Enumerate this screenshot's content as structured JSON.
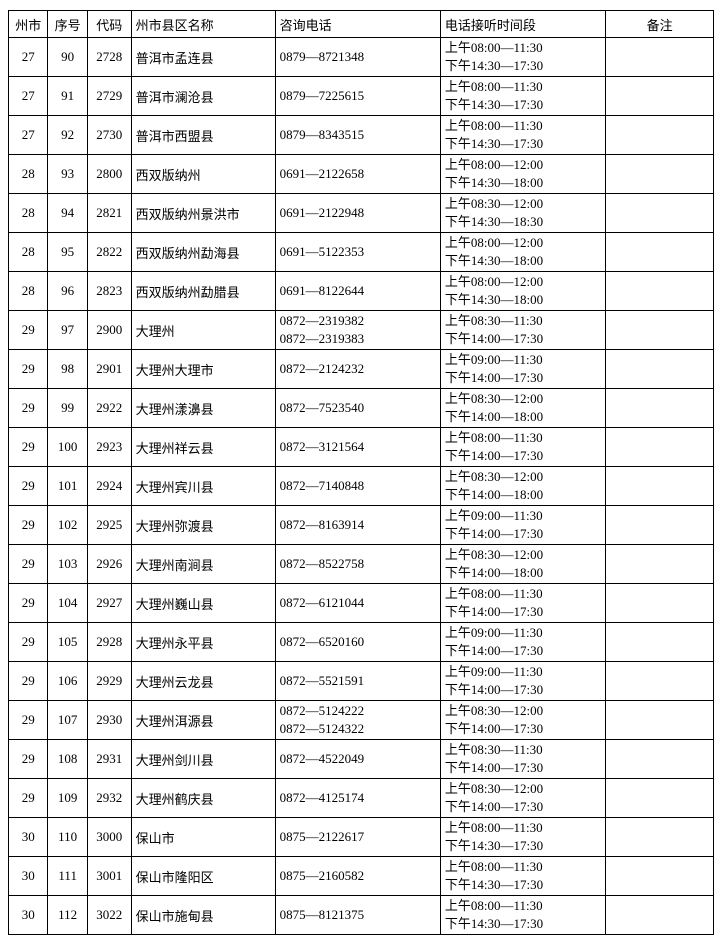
{
  "columns": [
    "州市",
    "序号",
    "代码",
    "州市县区名称",
    "咨询电话",
    "电话接听时间段",
    "备注"
  ],
  "rows": [
    {
      "city": "27",
      "seq": "90",
      "code": "2728",
      "name": "普洱市孟连县",
      "phones": [
        "0879—8721348"
      ],
      "times": [
        "上午08:00—11:30",
        "下午14:30—17:30"
      ],
      "note": ""
    },
    {
      "city": "27",
      "seq": "91",
      "code": "2729",
      "name": "普洱市澜沧县",
      "phones": [
        "0879—7225615"
      ],
      "times": [
        "上午08:00—11:30",
        "下午14:30—17:30"
      ],
      "note": ""
    },
    {
      "city": "27",
      "seq": "92",
      "code": "2730",
      "name": "普洱市西盟县",
      "phones": [
        "0879—8343515"
      ],
      "times": [
        "上午08:00—11:30",
        "下午14:30—17:30"
      ],
      "note": ""
    },
    {
      "city": "28",
      "seq": "93",
      "code": "2800",
      "name": "西双版纳州",
      "phones": [
        "0691—2122658"
      ],
      "times": [
        "上午08:00—12:00",
        "下午14:30—18:00"
      ],
      "note": ""
    },
    {
      "city": "28",
      "seq": "94",
      "code": "2821",
      "name": "西双版纳州景洪市",
      "phones": [
        "0691—2122948"
      ],
      "times": [
        "上午08:30—12:00",
        "下午14:30—18:30"
      ],
      "note": ""
    },
    {
      "city": "28",
      "seq": "95",
      "code": "2822",
      "name": "西双版纳州勐海县",
      "phones": [
        "0691—5122353"
      ],
      "times": [
        "上午08:00—12:00",
        "下午14:30—18:00"
      ],
      "note": ""
    },
    {
      "city": "28",
      "seq": "96",
      "code": "2823",
      "name": "西双版纳州勐腊县",
      "phones": [
        "0691—8122644"
      ],
      "times": [
        "上午08:00—12:00",
        "下午14:30—18:00"
      ],
      "note": ""
    },
    {
      "city": "29",
      "seq": "97",
      "code": "2900",
      "name": "大理州",
      "phones": [
        "0872—2319382",
        "0872—2319383"
      ],
      "times": [
        "上午08:30—11:30",
        "下午14:00—17:30"
      ],
      "note": ""
    },
    {
      "city": "29",
      "seq": "98",
      "code": "2901",
      "name": "大理州大理市",
      "phones": [
        "0872—2124232"
      ],
      "times": [
        "上午09:00—11:30",
        "下午14:00—17:30"
      ],
      "note": ""
    },
    {
      "city": "29",
      "seq": "99",
      "code": "2922",
      "name": "大理州漾濞县",
      "phones": [
        "0872—7523540"
      ],
      "times": [
        "上午08:30—12:00",
        "下午14:00—18:00"
      ],
      "note": ""
    },
    {
      "city": "29",
      "seq": "100",
      "code": "2923",
      "name": "大理州祥云县",
      "phones": [
        "0872—3121564"
      ],
      "times": [
        "上午08:00—11:30",
        "下午14:00—17:30"
      ],
      "note": ""
    },
    {
      "city": "29",
      "seq": "101",
      "code": "2924",
      "name": "大理州宾川县",
      "phones": [
        "0872—7140848"
      ],
      "times": [
        "上午08:30—12:00",
        "下午14:00—18:00"
      ],
      "note": ""
    },
    {
      "city": "29",
      "seq": "102",
      "code": "2925",
      "name": "大理州弥渡县",
      "phones": [
        "0872—8163914"
      ],
      "times": [
        "上午09:00—11:30",
        "下午14:00—17:30"
      ],
      "note": ""
    },
    {
      "city": "29",
      "seq": "103",
      "code": "2926",
      "name": "大理州南涧县",
      "phones": [
        "0872—8522758"
      ],
      "times": [
        "上午08:30—12:00",
        "下午14:00—18:00"
      ],
      "note": ""
    },
    {
      "city": "29",
      "seq": "104",
      "code": "2927",
      "name": "大理州巍山县",
      "phones": [
        "0872—6121044"
      ],
      "times": [
        "上午08:00—11:30",
        "下午14:00—17:30"
      ],
      "note": ""
    },
    {
      "city": "29",
      "seq": "105",
      "code": "2928",
      "name": "大理州永平县",
      "phones": [
        "0872—6520160"
      ],
      "times": [
        "上午09:00—11:30",
        "下午14:00—17:30"
      ],
      "note": ""
    },
    {
      "city": "29",
      "seq": "106",
      "code": "2929",
      "name": "大理州云龙县",
      "phones": [
        "0872—5521591"
      ],
      "times": [
        "上午09:00—11:30",
        "下午14:00—17:30"
      ],
      "note": ""
    },
    {
      "city": "29",
      "seq": "107",
      "code": "2930",
      "name": "大理州洱源县",
      "phones": [
        "0872—5124222",
        "0872—5124322"
      ],
      "times": [
        "上午08:30—12:00",
        "下午14:00—17:30"
      ],
      "note": ""
    },
    {
      "city": "29",
      "seq": "108",
      "code": "2931",
      "name": "大理州剑川县",
      "phones": [
        "0872—4522049"
      ],
      "times": [
        "上午08:30—11:30",
        "下午14:00—17:30"
      ],
      "note": ""
    },
    {
      "city": "29",
      "seq": "109",
      "code": "2932",
      "name": "大理州鹤庆县",
      "phones": [
        "0872—4125174"
      ],
      "times": [
        "上午08:30—12:00",
        "下午14:00—17:30"
      ],
      "note": ""
    },
    {
      "city": "30",
      "seq": "110",
      "code": "3000",
      "name": "保山市",
      "phones": [
        "0875—2122617"
      ],
      "times": [
        "上午08:00—11:30",
        "下午14:30—17:30"
      ],
      "note": ""
    },
    {
      "city": "30",
      "seq": "111",
      "code": "3001",
      "name": "保山市隆阳区",
      "phones": [
        "0875—2160582"
      ],
      "times": [
        "上午08:00—11:30",
        "下午14:30—17:30"
      ],
      "note": ""
    },
    {
      "city": "30",
      "seq": "112",
      "code": "3022",
      "name": "保山市施甸县",
      "phones": [
        "0875—8121375"
      ],
      "times": [
        "上午08:00—11:30",
        "下午14:30—17:30"
      ],
      "note": ""
    }
  ]
}
